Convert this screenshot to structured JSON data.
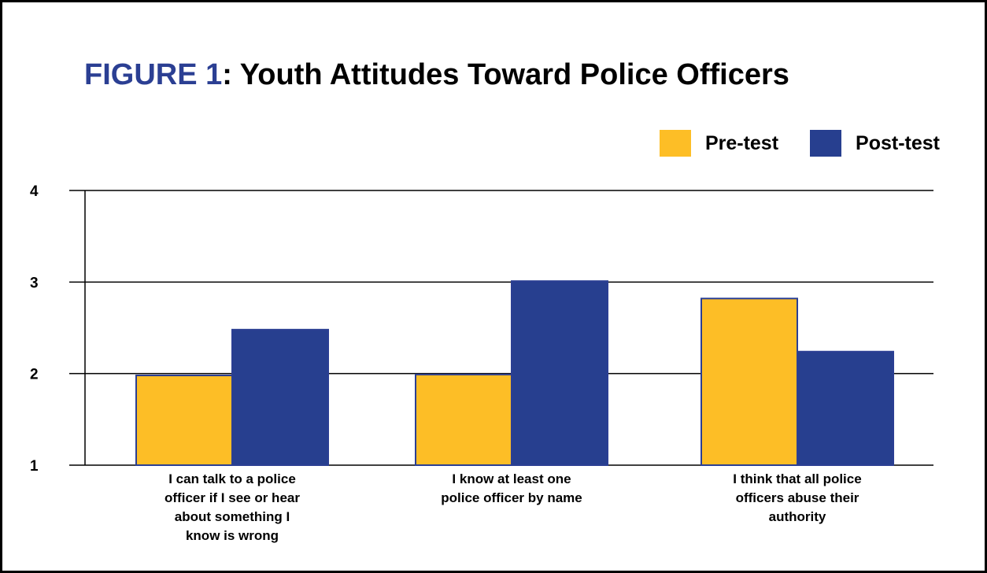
{
  "chart_data": {
    "type": "bar",
    "title_prefix": "FIGURE 1",
    "title_main": ": Youth Attitudes Toward Police Officers",
    "categories": [
      [
        "I can talk to a police",
        "officer if I see or hear",
        "about something I",
        "know is wrong"
      ],
      [
        "I know at least one",
        "police officer by name"
      ],
      [
        "I think that all police",
        "officers abuse their",
        "authority"
      ]
    ],
    "series": [
      {
        "name": "Pre-test",
        "color": "#fdbe26",
        "values": [
          1.98,
          1.99,
          2.82
        ]
      },
      {
        "name": "Post-test",
        "color": "#273f8f",
        "values": [
          2.48,
          3.01,
          2.24
        ]
      }
    ],
    "ylim": [
      1,
      4
    ],
    "yticks": [
      "1",
      "2",
      "3",
      "4"
    ],
    "grid": true,
    "legend_position": "top-right"
  }
}
